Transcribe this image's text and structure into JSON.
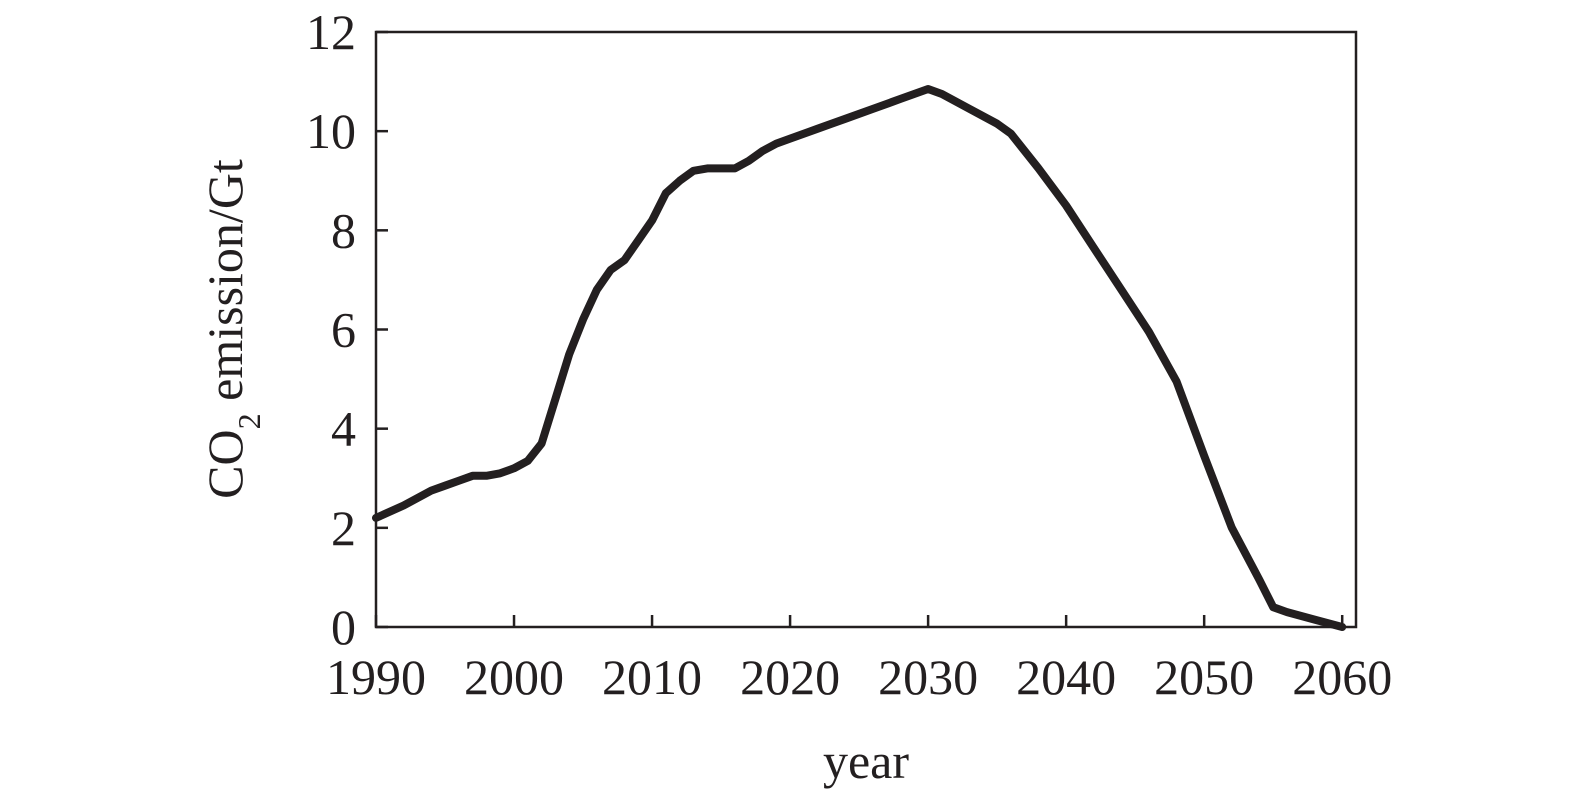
{
  "chart_data": {
    "type": "line",
    "title": "",
    "xlabel": "year",
    "ylabel": {
      "prefix": "CO",
      "subscript": "2",
      "suffix": " emission/Gt"
    },
    "xlim": [
      1990,
      2061
    ],
    "ylim": [
      0,
      12
    ],
    "xticks": [
      1990,
      2000,
      2010,
      2020,
      2030,
      2040,
      2050,
      2060
    ],
    "yticks": [
      0,
      2,
      4,
      6,
      8,
      10,
      12
    ],
    "grid": false,
    "legend": "none",
    "line_color": "#231f20",
    "series": [
      {
        "x": [
          1990,
          1992,
          1994,
          1995,
          1996,
          1997,
          1998,
          1999,
          2000,
          2001,
          2002,
          2003,
          2004,
          2005,
          2006,
          2007,
          2008,
          2009,
          2010,
          2011,
          2012,
          2013,
          2014,
          2015,
          2016,
          2017,
          2018,
          2019,
          2020,
          2022,
          2024,
          2026,
          2028,
          2030,
          2031,
          2033,
          2035,
          2036,
          2038,
          2040,
          2042,
          2044,
          2046,
          2048,
          2050,
          2052,
          2054,
          2055,
          2056,
          2058,
          2060
        ],
        "y": [
          2.2,
          2.45,
          2.75,
          2.85,
          2.95,
          3.05,
          3.05,
          3.1,
          3.2,
          3.35,
          3.7,
          4.6,
          5.5,
          6.2,
          6.8,
          7.2,
          7.4,
          7.8,
          8.2,
          8.75,
          9.0,
          9.2,
          9.25,
          9.25,
          9.25,
          9.4,
          9.6,
          9.75,
          9.85,
          10.05,
          10.25,
          10.45,
          10.65,
          10.85,
          10.75,
          10.45,
          10.15,
          9.95,
          9.25,
          8.5,
          7.65,
          6.8,
          5.95,
          4.95,
          3.45,
          2.0,
          0.95,
          0.4,
          0.3,
          0.15,
          0.0
        ]
      }
    ]
  }
}
